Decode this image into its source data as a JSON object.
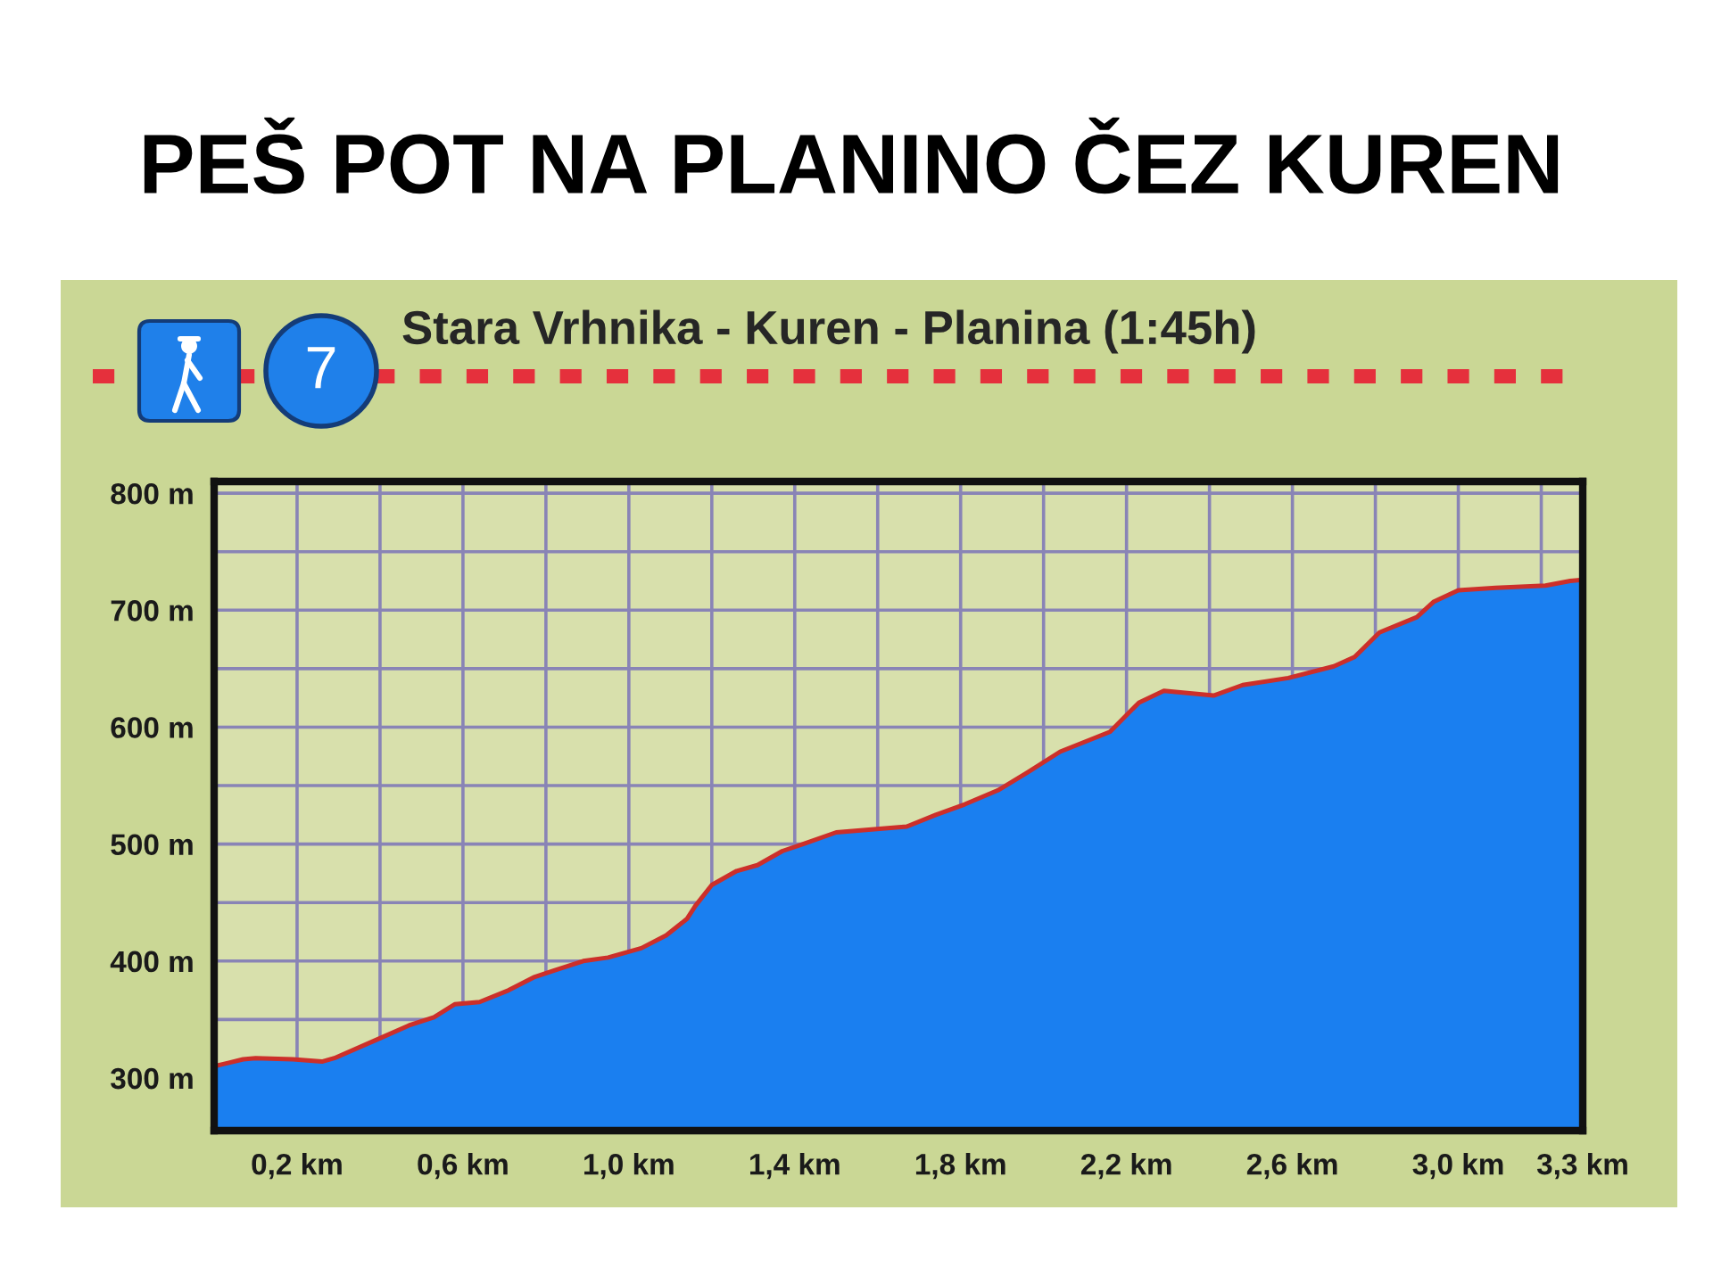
{
  "chart_data": {
    "type": "area",
    "title": "PEŠ POT NA PLANINO ČEZ KUREN",
    "subtitle": "Stara Vrhnika - Kuren - Planina (1:45h)",
    "annotations": [
      "7"
    ],
    "series": [
      {
        "color": "#1a7ff0",
        "x": [
          0,
          0.07,
          0.1,
          0.19,
          0.26,
          0.29,
          0.4,
          0.47,
          0.53,
          0.58,
          0.64,
          0.71,
          0.77,
          0.82,
          0.89,
          0.95,
          1.03,
          1.09,
          1.14,
          1.16,
          1.2,
          1.26,
          1.31,
          1.37,
          1.42,
          1.5,
          1.67,
          1.74,
          1.81,
          1.89,
          1.96,
          2.04,
          2.16,
          2.23,
          2.29,
          2.41,
          2.48,
          2.59,
          2.7,
          2.75,
          2.81,
          2.9,
          2.94,
          3.0,
          3.09,
          3.21,
          3.27,
          3.3
        ],
        "values": [
          310,
          316,
          317,
          316,
          314,
          317,
          334,
          345,
          352,
          363,
          365,
          375,
          386,
          392,
          400,
          403,
          411,
          422,
          436,
          447,
          465,
          477,
          482,
          494,
          500,
          510,
          515,
          525,
          534,
          546,
          561,
          579,
          596,
          621,
          631,
          627,
          636,
          642,
          652,
          660,
          681,
          694,
          707,
          717,
          719,
          721,
          725,
          726
        ]
      },
      {
        "type": "line",
        "color": "#cc2f2a",
        "x": [
          0,
          0.07,
          0.1,
          0.19,
          0.26,
          0.29,
          0.4,
          0.47,
          0.53,
          0.58,
          0.64,
          0.71,
          0.77,
          0.82,
          0.89,
          0.95,
          1.03,
          1.09,
          1.14,
          1.16,
          1.2,
          1.26,
          1.31,
          1.37,
          1.42,
          1.5,
          1.67,
          1.74,
          1.81,
          1.89,
          1.96,
          2.04,
          2.16,
          2.23,
          2.29,
          2.41,
          2.48,
          2.59,
          2.7,
          2.75,
          2.81,
          2.9,
          2.94,
          3.0,
          3.09,
          3.21,
          3.27,
          3.3
        ],
        "values": [
          310,
          316,
          317,
          316,
          314,
          317,
          334,
          345,
          352,
          363,
          365,
          375,
          386,
          392,
          400,
          403,
          411,
          422,
          436,
          447,
          465,
          477,
          482,
          494,
          500,
          510,
          515,
          525,
          534,
          546,
          561,
          579,
          596,
          621,
          631,
          627,
          636,
          642,
          652,
          660,
          681,
          694,
          707,
          717,
          719,
          721,
          725,
          726
        ]
      }
    ],
    "xlim": [
      0,
      3.3
    ],
    "xticks": [
      {
        "value": 0.2,
        "label": "0,2 km"
      },
      {
        "value": 0.4,
        "label": null
      },
      {
        "value": 0.6,
        "label": "0,6 km"
      },
      {
        "value": 0.8,
        "label": null
      },
      {
        "value": 1.0,
        "label": "1,0 km"
      },
      {
        "value": 1.2,
        "label": null
      },
      {
        "value": 1.4,
        "label": "1,4 km"
      },
      {
        "value": 1.6,
        "label": null
      },
      {
        "value": 1.8,
        "label": "1,8 km"
      },
      {
        "value": 2.0,
        "label": null
      },
      {
        "value": 2.2,
        "label": "2,2 km"
      },
      {
        "value": 2.4,
        "label": null
      },
      {
        "value": 2.6,
        "label": "2,6 km"
      },
      {
        "value": 2.8,
        "label": null
      },
      {
        "value": 3.0,
        "label": "3,0 km"
      },
      {
        "value": 3.2,
        "label": null
      },
      {
        "value": 3.3,
        "label": "3,3 km"
      }
    ],
    "ylim": [
      255,
      810
    ],
    "yticks": [
      {
        "value": 300,
        "label": "300 m"
      },
      {
        "value": 350,
        "label": null
      },
      {
        "value": 400,
        "label": "400 m"
      },
      {
        "value": 450,
        "label": null
      },
      {
        "value": 500,
        "label": "500 m"
      },
      {
        "value": 550,
        "label": null
      },
      {
        "value": 600,
        "label": "600 m"
      },
      {
        "value": 650,
        "label": null
      },
      {
        "value": 700,
        "label": "700 m"
      },
      {
        "value": 750,
        "label": null
      },
      {
        "value": 800,
        "label": "800 m"
      }
    ],
    "grid": true
  }
}
